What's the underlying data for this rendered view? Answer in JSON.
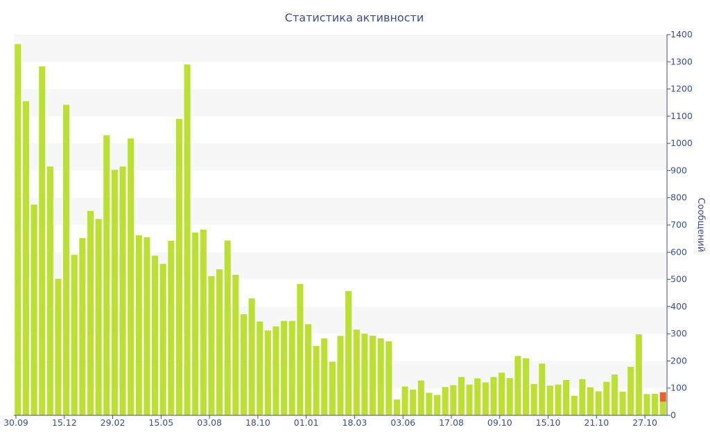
{
  "chart_data": {
    "type": "bar",
    "title": "Статистика активности",
    "ylabel": "Сообщений",
    "xlabel": "",
    "ylim": [
      0,
      1400
    ],
    "y_ticks": [
      0,
      100,
      200,
      300,
      400,
      500,
      600,
      700,
      800,
      900,
      1000,
      1100,
      1200,
      1300,
      1400
    ],
    "y_axis_side": "right",
    "grid": "alternating horizontal bands",
    "x_tick_labels": [
      {
        "index": 0,
        "label": "30.09"
      },
      {
        "index": 6,
        "label": "15.12"
      },
      {
        "index": 12,
        "label": "29.02"
      },
      {
        "index": 18,
        "label": "15.05"
      },
      {
        "index": 24,
        "label": "03.08"
      },
      {
        "index": 30,
        "label": "18.10"
      },
      {
        "index": 36,
        "label": "01.01"
      },
      {
        "index": 42,
        "label": "18.03"
      },
      {
        "index": 48,
        "label": "03.06"
      },
      {
        "index": 54,
        "label": "17.08"
      },
      {
        "index": 60,
        "label": "09.10"
      },
      {
        "index": 66,
        "label": "15.10"
      },
      {
        "index": 72,
        "label": "21.10"
      },
      {
        "index": 78,
        "label": "27.10"
      }
    ],
    "values": [
      1365,
      1155,
      775,
      1283,
      915,
      502,
      1142,
      590,
      652,
      752,
      722,
      1030,
      903,
      915,
      1018,
      662,
      655,
      587,
      557,
      642,
      1090,
      1290,
      672,
      683,
      512,
      537,
      643,
      517,
      372,
      430,
      345,
      312,
      327,
      347,
      347,
      483,
      335,
      255,
      283,
      197,
      292,
      457,
      315,
      300,
      293,
      283,
      272,
      58,
      106,
      95,
      128,
      83,
      75,
      104,
      111,
      141,
      113,
      136,
      121,
      141,
      157,
      137,
      218,
      210,
      115,
      190,
      109,
      113,
      130,
      72,
      133,
      103,
      88,
      123,
      150,
      87,
      178,
      298,
      78,
      79,
      85
    ],
    "highlight": {
      "index": 80,
      "values": [
        50,
        35
      ]
    },
    "colors": {
      "bar": "#bce032",
      "highlight_bottom": "#bce032",
      "highlight_top": "#e8632b",
      "band": "#f7f7f7",
      "axis": "#3b4f86",
      "text": "#3b4f86"
    }
  }
}
